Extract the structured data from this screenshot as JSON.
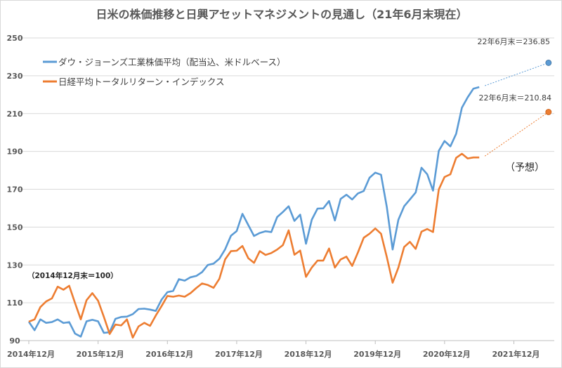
{
  "chart_data": {
    "type": "line",
    "title": "日米の株価推移と日興アセットマネジメントの見通し（21年6月末現在）",
    "xlabel": "",
    "ylabel": "",
    "ylim": [
      90,
      250
    ],
    "yticks": [
      90,
      110,
      130,
      150,
      170,
      190,
      210,
      230,
      250
    ],
    "xticks": [
      "2014年12月",
      "2015年12月",
      "2016年12月",
      "2017年12月",
      "2018年12月",
      "2019年12月",
      "2020年12月",
      "2021年12月"
    ],
    "x_start": "2014-12",
    "x_end": "2022-06",
    "grid": true,
    "legend_position": "top-left",
    "base_note": "（2014年12月末＝100）",
    "forecast_label": "（予想）",
    "series": [
      {
        "name": "ダウ・ジョーンズ工業株価平均（配当込、米ドルベース）",
        "color": "#5b9bd5",
        "values": [
          100,
          95.5,
          101.2,
          99.4,
          99.8,
          101.2,
          99.3,
          99.8,
          93.7,
          92.1,
          100.2,
          101,
          100.2,
          94.1,
          94.4,
          101.5,
          102.5,
          102.7,
          104,
          106.7,
          106.9,
          106.4,
          105.7,
          111.7,
          115.6,
          116.3,
          122.5,
          121.7,
          123.5,
          124.2,
          126.2,
          130,
          130.7,
          133.3,
          138.3,
          145.4,
          147.9,
          157,
          151.1,
          145.3,
          146.9,
          147.8,
          147.4,
          155.3,
          158,
          161,
          153.3,
          156.6,
          141.2,
          153.9,
          159.8,
          159.9,
          163.8,
          153.5,
          164.9,
          167.1,
          164.6,
          167.8,
          169.1,
          176.1,
          178.8,
          177.7,
          160.7,
          138.2,
          153.9,
          161,
          164.6,
          168.3,
          181.4,
          177.9,
          169.3,
          190.3,
          195.5,
          192.7,
          199.3,
          213.1,
          218.6,
          223.2,
          224
        ],
        "forecast": {
          "x": "2022-06",
          "value": 236.85,
          "label": "22年6月末＝236.85"
        }
      },
      {
        "name": "日経平均トータルリターン・インデックス",
        "color": "#ed7d31",
        "values": [
          100,
          101.2,
          107.7,
          110.7,
          112.3,
          118.5,
          116.9,
          119,
          109.9,
          101.2,
          111.4,
          115.1,
          111.1,
          102.5,
          93.5,
          98.5,
          98,
          101.2,
          91.6,
          97.5,
          99.4,
          97.8,
          103.3,
          108.3,
          113.6,
          113.2,
          113.8,
          113.2,
          115.1,
          117.8,
          120.2,
          119.4,
          117.9,
          122.7,
          133,
          137.3,
          137.5,
          140,
          133.6,
          131.1,
          137.3,
          135.3,
          136.3,
          138.1,
          140.5,
          148.3,
          135.4,
          137.6,
          123.7,
          128.6,
          132.3,
          132.3,
          138.7,
          128.6,
          132.9,
          134.4,
          129.5,
          136.6,
          144.4,
          146.5,
          149.3,
          146.5,
          134.2,
          120.6,
          128.6,
          139.5,
          142.2,
          138.5,
          147.6,
          149,
          147.4,
          169.9,
          176.5,
          177.9,
          186.6,
          188.8,
          186.3,
          186.8,
          186.8
        ],
        "forecast": {
          "x": "2022-06",
          "value": 210.84,
          "label": "22年6月末＝210.84"
        }
      }
    ]
  }
}
